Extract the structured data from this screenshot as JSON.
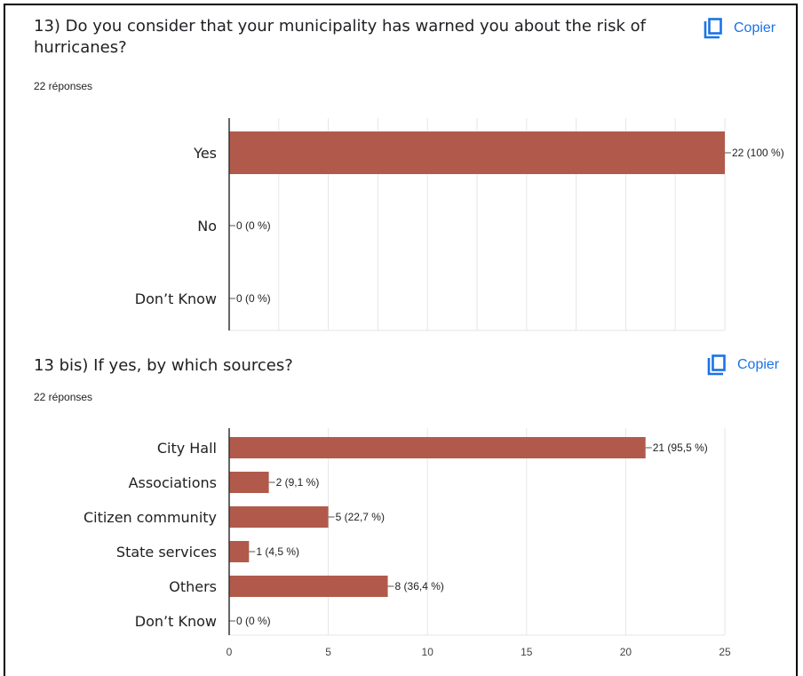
{
  "colors": {
    "bar": "#b15a4b",
    "grid": "#e6e6e6",
    "axis": "#333333",
    "accent": "#1a73e8"
  },
  "questions": [
    {
      "title_line1": "13) Do you consider that your municipality has warned you about the risk of",
      "title_line2": "hurricanes?",
      "responses": "22 réponses",
      "copy_label": "Copier",
      "copy_icon": "copy-icon"
    },
    {
      "title_line1": "13 bis) If yes, by which sources?",
      "title_line2": "",
      "responses": "22 réponses",
      "copy_label": "Copier",
      "copy_icon": "copy-icon"
    }
  ],
  "chart_data": [
    {
      "type": "bar",
      "orientation": "horizontal",
      "categories": [
        "Yes",
        "No",
        "Don’t Know"
      ],
      "values": [
        22,
        0,
        0
      ],
      "labels": [
        "22 (100 %)",
        "0 (0 %)",
        "0 (0 %)"
      ],
      "xlim": [
        0,
        22
      ],
      "grid": true,
      "ticks": []
    },
    {
      "type": "bar",
      "orientation": "horizontal",
      "categories": [
        "City Hall",
        "Associations",
        "Citizen community",
        "State services",
        "Others",
        "Don’t Know"
      ],
      "values": [
        21,
        2,
        5,
        1,
        8,
        0
      ],
      "labels": [
        "21 (95,5 %)",
        "2 (9,1 %)",
        "5 (22,7 %)",
        "1 (4,5 %)",
        "8 (36,4 %)",
        "0 (0 %)"
      ],
      "xlim": [
        0,
        25
      ],
      "grid": true,
      "ticks": [
        "0",
        "5",
        "10",
        "15",
        "20",
        "25"
      ]
    }
  ]
}
